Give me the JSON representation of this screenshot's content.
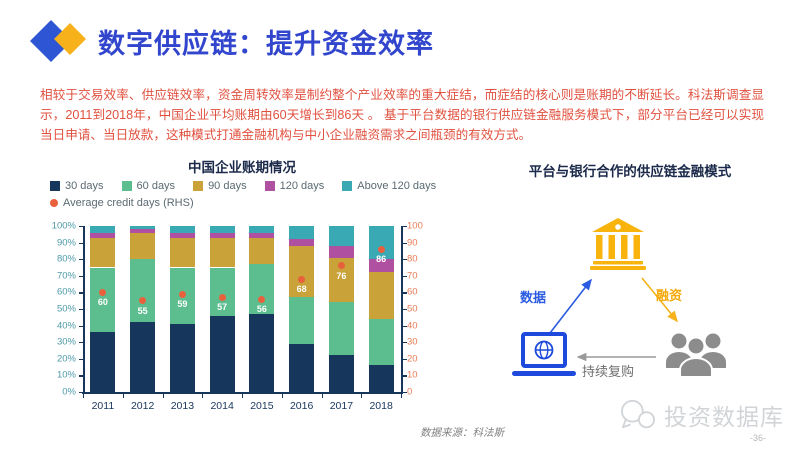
{
  "header": {
    "title": "数字供应链：提升资金效率"
  },
  "intro": {
    "text": "相较于交易效率、供应链效率，资金周转效率是制约整个产业效率的重大症结，而症结的核心则是账期的不断延长。科法斯调查显示，2011到2018年，中国企业平均账期由60天增长到86天 。 基于平台数据的银行供应链金融服务模式下，部分平台已经可以实现当日申请、当日放款，这种模式打通金融机构与中小企业融资需求之间瓶颈的有效方式。"
  },
  "chart_data": {
    "type": "bar",
    "stacked": true,
    "title": "中国企业账期情况",
    "categories": [
      "2011",
      "2012",
      "2013",
      "2014",
      "2015",
      "2016",
      "2017",
      "2018"
    ],
    "series": [
      {
        "name": "30 days",
        "color": "#17365c",
        "values": [
          36,
          42,
          41,
          46,
          47,
          29,
          22,
          16
        ]
      },
      {
        "name": "60 days",
        "color": "#5cbd8f",
        "values": [
          39,
          38,
          34,
          29,
          30,
          28,
          32,
          28
        ]
      },
      {
        "name": "90 days",
        "color": "#c9a23a",
        "values": [
          18,
          16,
          18,
          18,
          16,
          31,
          27,
          28
        ]
      },
      {
        "name": "120 days",
        "color": "#b050a0",
        "values": [
          3,
          2,
          3,
          3,
          3,
          4,
          7,
          8
        ]
      },
      {
        "name": "Above 120 days",
        "color": "#39a9b4",
        "values": [
          4,
          2,
          4,
          4,
          4,
          8,
          12,
          20
        ]
      }
    ],
    "line_series": {
      "name": "Average credit days (RHS)",
      "color": "#e8603c",
      "values": [
        60,
        55,
        59,
        57,
        56,
        68,
        76,
        86
      ]
    },
    "left_axis": {
      "ticks": [
        "0%",
        "10%",
        "20%",
        "30%",
        "40%",
        "50%",
        "60%",
        "70%",
        "80%",
        "90%",
        "100%"
      ],
      "range": [
        0,
        100
      ]
    },
    "right_axis": {
      "ticks": [
        "0",
        "10",
        "20",
        "30",
        "40",
        "50",
        "60",
        "70",
        "80",
        "90",
        "100"
      ],
      "range": [
        0,
        100
      ],
      "color": "#e87c55"
    },
    "legend_position": "top",
    "grid": false
  },
  "diagram": {
    "title": "平台与银行合作的供应链金融模式",
    "labels": {
      "data": "数据",
      "financing": "融资",
      "repurchase": "持续复购"
    },
    "icons": [
      "bank-icon",
      "laptop-globe-icon",
      "people-group-icon"
    ],
    "colors": {
      "bank": "#f8b40d",
      "laptop": "#1d49dd",
      "people": "#8c8c8c",
      "arrow_data": "#2b5be0",
      "arrow_financing": "#f6b11b",
      "arrow_repurchase": "#9a9a9a"
    }
  },
  "footer": {
    "source": "数据来源：科法斯",
    "watermark": "投资数据库",
    "page": "-36-"
  },
  "brand_colors": {
    "title_blue": "#3246cd",
    "diamond_blue": "#2e55d4",
    "diamond_yellow": "#f6b11b",
    "body_red": "#e0513f"
  }
}
